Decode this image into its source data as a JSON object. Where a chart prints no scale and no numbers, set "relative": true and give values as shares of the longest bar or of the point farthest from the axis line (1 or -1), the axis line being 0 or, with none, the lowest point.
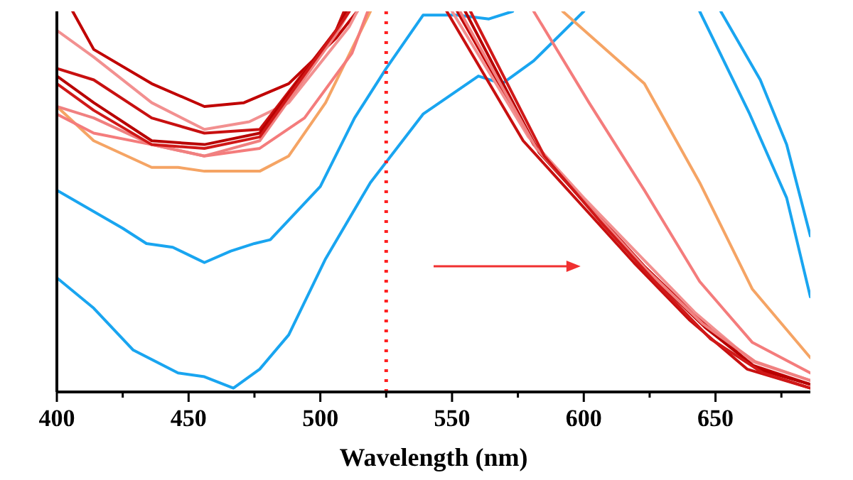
{
  "chart_data": {
    "type": "line",
    "relative": true,
    "xlabel": "Wavelength (nm)",
    "xlim": [
      400,
      686
    ],
    "xticks": [
      400,
      {
        "value": 425,
        "label": null
      },
      450,
      {
        "value": 475,
        "label": null
      },
      500,
      {
        "value": 525,
        "label": null
      },
      550,
      {
        "value": 575,
        "label": null
      },
      600,
      {
        "value": 625,
        "label": null
      },
      650,
      {
        "value": 675,
        "label": null
      }
    ],
    "ref_lines": [
      {
        "axis": "x",
        "value": 525,
        "color": "#ff2020",
        "line_style": "dotted"
      }
    ],
    "grid": false,
    "line_style": "solid",
    "series": [
      {
        "color": "#19a5f0",
        "x": [
          400,
          425,
          434,
          444,
          453,
          456,
          466,
          475,
          481,
          500,
          513,
          525,
          539,
          552,
          564,
          573,
          600,
          644,
          663,
          677,
          686
        ],
        "values": [
          0.53,
          0.43,
          0.39,
          0.38,
          0.35,
          0.34,
          0.37,
          0.39,
          0.4,
          0.54,
          0.72,
          0.85,
          0.99,
          0.99,
          0.98,
          1,
          null,
          1,
          0.73,
          0.51,
          0.25
        ]
      },
      {
        "color": "#19a5f0",
        "x": [
          400,
          414,
          429,
          446,
          456,
          467,
          477,
          488,
          502,
          519,
          539,
          560,
          569,
          581,
          600,
          620,
          652,
          667,
          677,
          686
        ],
        "values": [
          0.3,
          0.22,
          0.11,
          0.05,
          0.04,
          0.01,
          0.06,
          0.15,
          0.35,
          0.55,
          0.73,
          0.83,
          0.81,
          0.87,
          1,
          null,
          1,
          0.82,
          0.65,
          0.41
        ]
      },
      {
        "color": "#f5a464",
        "x": [
          400,
          414,
          436,
          446,
          456,
          477,
          488,
          502,
          519,
          560,
          592,
          623,
          644,
          664,
          686
        ],
        "values": [
          0.75,
          0.66,
          0.59,
          0.59,
          0.58,
          0.58,
          0.62,
          0.76,
          1,
          null,
          1,
          0.81,
          0.55,
          0.27,
          0.09
        ]
      },
      {
        "color": "#f47c7c",
        "x": [
          400,
          414,
          436,
          456,
          477,
          494,
          512,
          518,
          540,
          581,
          602,
          623,
          644,
          664,
          686
        ],
        "values": [
          0.73,
          0.68,
          0.65,
          0.62,
          0.64,
          0.72,
          0.89,
          1,
          null,
          1,
          0.76,
          0.53,
          0.29,
          0.13,
          0.05
        ]
      },
      {
        "color": "#c00000",
        "x": [
          406,
          414,
          436,
          456,
          471,
          488,
          506,
          514,
          540,
          552,
          581,
          602,
          623,
          644,
          664,
          686
        ],
        "values": [
          1,
          0.9,
          0.81,
          0.75,
          0.76,
          0.81,
          0.93,
          1,
          null,
          1,
          0.65,
          0.49,
          0.33,
          0.19,
          0.07,
          0.02
        ]
      },
      {
        "color": "#f29090",
        "x": [
          400,
          414,
          436,
          456,
          473,
          488,
          511,
          514,
          540,
          550,
          579,
          600,
          621,
          642,
          664,
          686
        ],
        "values": [
          0.95,
          0.88,
          0.76,
          0.69,
          0.71,
          0.76,
          0.96,
          1,
          null,
          1,
          0.67,
          0.51,
          0.36,
          0.21,
          0.08,
          0.03
        ]
      },
      {
        "color": "#c81010",
        "x": [
          400,
          414,
          436,
          456,
          477,
          506,
          509,
          530,
          548,
          577,
          598,
          619,
          640,
          662,
          686
        ],
        "values": [
          0.85,
          0.82,
          0.72,
          0.68,
          0.69,
          0.95,
          1,
          null,
          1,
          0.66,
          0.5,
          0.34,
          0.19,
          0.06,
          0.01
        ]
      },
      {
        "color": "#b80000",
        "x": [
          400,
          414,
          436,
          456,
          477,
          506,
          510,
          530,
          555,
          583,
          604,
          625,
          646,
          666,
          686
        ],
        "values": [
          0.83,
          0.76,
          0.66,
          0.65,
          0.68,
          0.95,
          1,
          null,
          1,
          0.63,
          0.47,
          0.31,
          0.17,
          0.06,
          0.02
        ]
      },
      {
        "color": "#f08080",
        "x": [
          400,
          414,
          436,
          456,
          477,
          506,
          511,
          530,
          553,
          582,
          603,
          624,
          645,
          665,
          686
        ],
        "values": [
          0.75,
          0.72,
          0.65,
          0.62,
          0.66,
          0.94,
          1,
          null,
          1,
          0.64,
          0.48,
          0.32,
          0.18,
          0.08,
          0.03
        ]
      },
      {
        "color": "#d01818",
        "x": [
          400,
          414,
          436,
          456,
          477,
          506,
          511,
          530,
          557,
          585,
          606,
          627,
          648,
          668,
          686
        ],
        "values": [
          0.81,
          0.74,
          0.65,
          0.64,
          0.67,
          0.95,
          1,
          null,
          1,
          0.62,
          0.45,
          0.29,
          0.14,
          0.05,
          0.01
        ]
      }
    ]
  }
}
